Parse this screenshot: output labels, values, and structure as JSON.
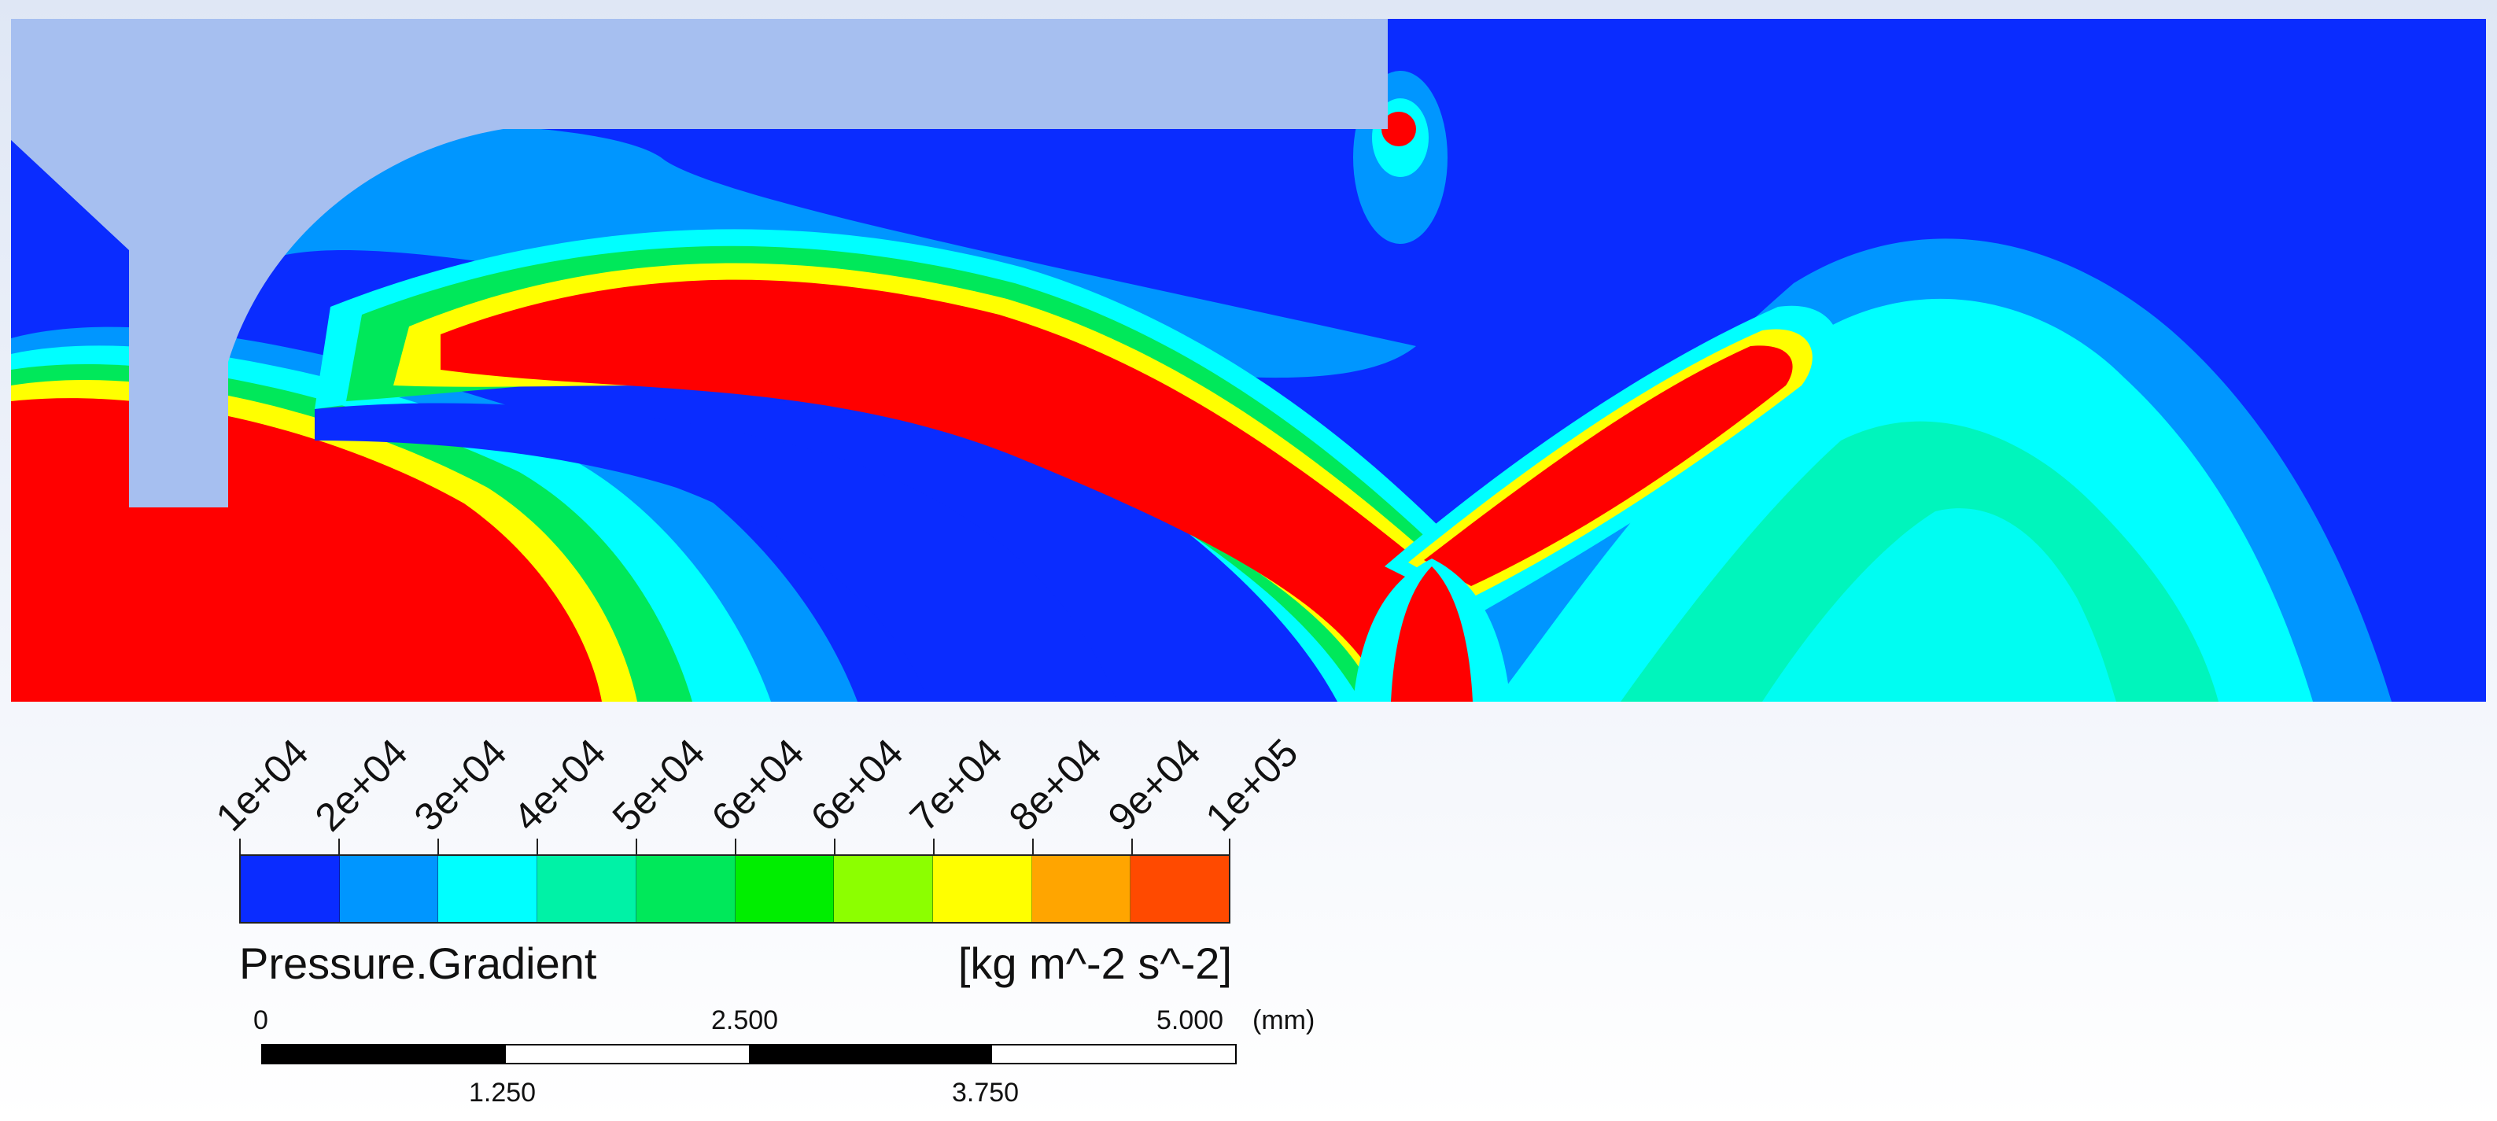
{
  "legend": {
    "tick_labels": [
      "1e+04",
      "2e+04",
      "3e+04",
      "4e+04",
      "5e+04",
      "6e+04",
      "6e+04",
      "7e+04",
      "8e+04",
      "9e+04",
      "1e+05"
    ],
    "colors": [
      "#0a2cff",
      "#0096ff",
      "#00ffff",
      "#00f2a6",
      "#00e85a",
      "#00ee00",
      "#8cff00",
      "#ffff00",
      "#ffa500",
      "#ff4a00"
    ],
    "title": "Pressure.Gradient",
    "units": "[kg m^-2 s^-2]"
  },
  "scale": {
    "top_labels": [
      "0",
      "2.500",
      "5.000"
    ],
    "unit": "(mm)",
    "bottom_labels": [
      "1.250",
      "3.750"
    ]
  },
  "field_colors": {
    "background": "#0a2cff",
    "band_outer": "#0096ff",
    "band_mid": "#00ffff",
    "band_inner": "#00e85a",
    "band_core": "#ffff00",
    "peak": "#ff0000",
    "solid": "#a6bff0"
  }
}
